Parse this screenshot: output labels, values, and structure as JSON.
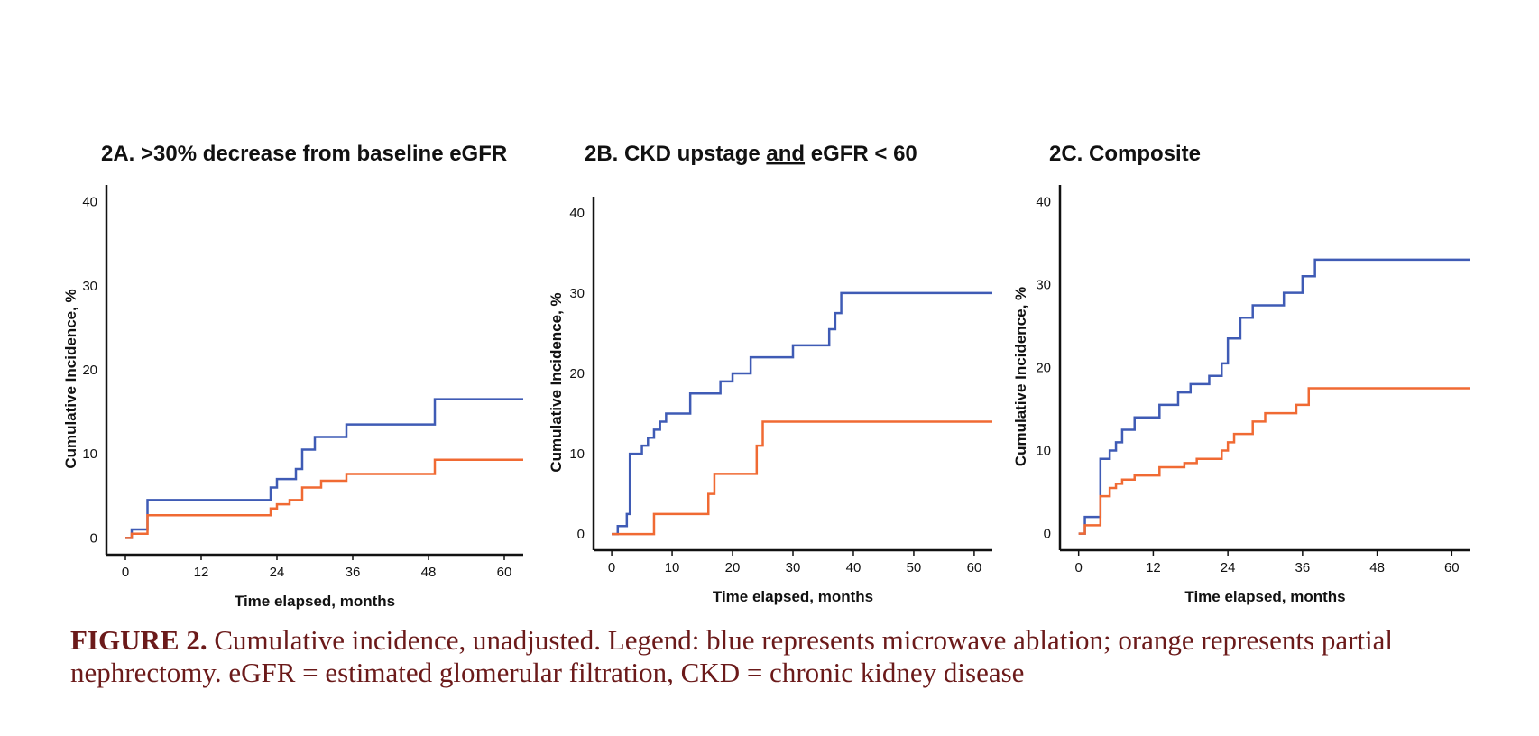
{
  "figure": {
    "caption_label": "FIGURE 2.",
    "caption_text": " Cumulative incidence, unadjusted. Legend: blue represents microwave ablation; orange represents partial nephrectomy. eGFR = estimated glomerular filtration, CKD = chronic kidney disease"
  },
  "colors": {
    "microwave_ablation": "#3f5bb5",
    "partial_nephrectomy": "#f06a33",
    "axis": "#111111",
    "caption": "#6b1a1a"
  },
  "chart_data": [
    {
      "type": "line",
      "step": true,
      "title": "2A. >30% decrease from baseline eGFR",
      "title_underline": "",
      "xlabel": "Time elapsed, months",
      "ylabel": "Cumulative Incidence, %",
      "xlim": [
        -3,
        63
      ],
      "ylim": [
        -2,
        42
      ],
      "xticks": [
        0,
        12,
        24,
        36,
        48,
        60
      ],
      "yticks": [
        0,
        10,
        20,
        30,
        40
      ],
      "series": [
        {
          "color": "#3f5bb5",
          "x": [
            0,
            1,
            3,
            3.5,
            21,
            23,
            24,
            27,
            28,
            30,
            35,
            49,
            63
          ],
          "y": [
            0,
            1,
            1,
            4.5,
            4.5,
            6,
            7,
            8.2,
            10.5,
            12,
            13.5,
            16.5,
            16.5
          ]
        },
        {
          "color": "#f06a33",
          "x": [
            0,
            1,
            3,
            3.5,
            21,
            23,
            24,
            26,
            28,
            31,
            35,
            49,
            63
          ],
          "y": [
            0,
            0.5,
            0.5,
            2.7,
            2.7,
            3.5,
            4,
            4.5,
            6,
            6.8,
            7.6,
            9.3,
            9.3
          ]
        }
      ]
    },
    {
      "type": "line",
      "step": true,
      "title": "2B. CKD upstage and eGFR < 60",
      "title_underline": "and",
      "xlabel": "Time elapsed, months",
      "ylabel": "Cumulative Incidence, %",
      "xlim": [
        -3,
        63
      ],
      "ylim": [
        -2,
        42
      ],
      "xticks": [
        0,
        10,
        20,
        30,
        40,
        50,
        60
      ],
      "yticks": [
        0,
        10,
        20,
        30,
        40
      ],
      "series": [
        {
          "color": "#3f5bb5",
          "x": [
            0,
            1,
            2.5,
            3,
            5,
            6,
            7,
            8,
            9,
            13,
            18,
            20,
            23,
            30,
            36,
            37,
            38,
            63
          ],
          "y": [
            0,
            1,
            2.5,
            10,
            11,
            12,
            13,
            14,
            15,
            17.5,
            19,
            20,
            22,
            23.5,
            25.5,
            27.5,
            30,
            30
          ]
        },
        {
          "color": "#f06a33",
          "x": [
            0,
            7,
            16,
            17,
            24,
            25,
            63
          ],
          "y": [
            0,
            2.5,
            5,
            7.5,
            11,
            14,
            14
          ]
        }
      ]
    },
    {
      "type": "line",
      "step": true,
      "title": "2C. Composite",
      "title_underline": "",
      "xlabel": "Time elapsed, months",
      "ylabel": "Cumulative Incidence, %",
      "xlim": [
        -3,
        63
      ],
      "ylim": [
        -2,
        42
      ],
      "xticks": [
        0,
        12,
        24,
        36,
        48,
        60
      ],
      "yticks": [
        0,
        10,
        20,
        30,
        40
      ],
      "series": [
        {
          "color": "#3f5bb5",
          "x": [
            0,
            1,
            3,
            3.5,
            5,
            6,
            7,
            9,
            13,
            16,
            18,
            21,
            23,
            24,
            26,
            28,
            33,
            36,
            38,
            63
          ],
          "y": [
            0,
            2,
            2,
            9,
            10,
            11,
            12.5,
            14,
            15.5,
            17,
            18,
            19,
            20.5,
            23.5,
            26,
            27.5,
            29,
            31,
            33,
            33
          ]
        },
        {
          "color": "#f06a33",
          "x": [
            0,
            1,
            3,
            3.5,
            5,
            6,
            7,
            9,
            13,
            17,
            19,
            23,
            24,
            25,
            28,
            30,
            35,
            37,
            63
          ],
          "y": [
            0,
            1,
            1,
            4.5,
            5.5,
            6,
            6.5,
            7,
            8,
            8.5,
            9,
            10,
            11,
            12,
            13.5,
            14.5,
            15.5,
            17.5,
            17.5
          ]
        }
      ]
    }
  ]
}
